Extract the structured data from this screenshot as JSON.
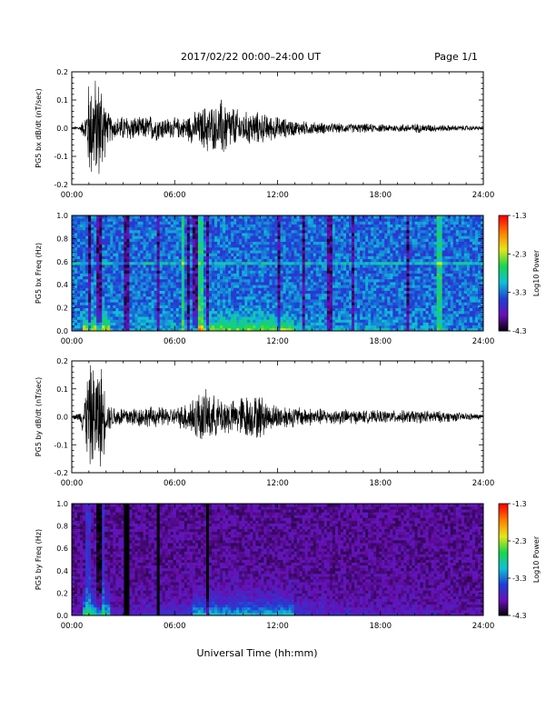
{
  "header": {
    "title": "2017/02/22  00:00–24:00 UT",
    "page": "Page 1/1"
  },
  "footer": {
    "xlabel": "Universal Time (hh:mm)"
  },
  "colors": {
    "trace": "#000000",
    "spectrogram_bg": "#2a0f6e",
    "colorbar": [
      "#000000",
      "#6a0fb5",
      "#1f3fd6",
      "#10c0d6",
      "#19d64b",
      "#e6e619",
      "#ff8000",
      "#ff0000"
    ]
  },
  "chart_data": [
    {
      "type": "line",
      "title": "",
      "xlabel": "",
      "ylabel": "PG5 bx dB/dt (nT/sec)",
      "xlim": [
        0,
        24
      ],
      "ylim": [
        -0.2,
        0.2
      ],
      "xticks": [
        "00:00",
        "06:00",
        "12:00",
        "18:00",
        "24:00"
      ],
      "yticks": [
        "-0.2",
        "-0.1",
        "0.0",
        "0.1",
        "0.2"
      ],
      "series": [
        {
          "x": [
            0,
            0.5,
            0.8,
            1.0,
            1.2,
            1.5,
            1.8,
            2.0,
            2.5,
            3.0,
            3.5,
            4.0,
            4.5,
            5.0,
            5.5,
            6.0,
            6.5,
            7.0,
            7.5,
            7.9,
            8.5,
            8.8,
            9.0,
            9.5,
            10.0,
            10.5,
            11.0,
            11.5,
            12.0,
            13.0,
            14.0,
            15.0,
            16.0,
            17.0,
            18.0,
            19.0,
            20.0,
            21.0,
            22.0,
            23.0,
            24.0
          ],
          "envelope": [
            0.005,
            0.01,
            0.05,
            0.2,
            0.2,
            0.2,
            0.2,
            0.07,
            0.04,
            0.05,
            0.05,
            0.04,
            0.05,
            0.05,
            0.04,
            0.04,
            0.04,
            0.06,
            0.07,
            0.1,
            0.08,
            0.13,
            0.1,
            0.08,
            0.06,
            0.07,
            0.06,
            0.05,
            0.045,
            0.03,
            0.025,
            0.02,
            0.018,
            0.018,
            0.015,
            0.015,
            0.018,
            0.015,
            0.012,
            0.01,
            0.008
          ]
        }
      ]
    },
    {
      "type": "heatmap",
      "title": "",
      "xlabel": "",
      "ylabel": "PG5 bx Freq (Hz)",
      "xlim": [
        0,
        24
      ],
      "ylim": [
        0,
        1.0
      ],
      "xticks": [
        "00:00",
        "06:00",
        "12:00",
        "18:00",
        "24:00"
      ],
      "yticks": [
        "0.0",
        "0.2",
        "0.4",
        "0.6",
        "0.8",
        "1.0"
      ],
      "colorbar": {
        "label": "Log10 Power",
        "ticks": [
          "-1.3",
          "-2.3",
          "-3.3",
          "-4.3"
        ],
        "range": [
          -4.3,
          -1.3
        ]
      },
      "features": {
        "dark_bands_hours": [
          1.0,
          1.6,
          3.2,
          5.0,
          6.7,
          7.2,
          7.9,
          12.1,
          13.5,
          15.0,
          16.4,
          19.6
        ],
        "bright_bands_hours": [
          6.6,
          7.5,
          21.4
        ],
        "line_freq_hz": 0.58
      }
    },
    {
      "type": "line",
      "title": "",
      "xlabel": "",
      "ylabel": "PG5 by dB/dt (nT/sec)",
      "xlim": [
        0,
        24
      ],
      "ylim": [
        -0.2,
        0.2
      ],
      "xticks": [
        "00:00",
        "06:00",
        "12:00",
        "18:00",
        "24:00"
      ],
      "yticks": [
        "-0.2",
        "-0.1",
        "0.0",
        "0.1",
        "0.2"
      ],
      "series": [
        {
          "x": [
            0,
            0.5,
            0.8,
            1.0,
            1.2,
            1.5,
            1.8,
            2.0,
            2.5,
            3.0,
            3.5,
            4.0,
            4.5,
            5.0,
            5.5,
            6.0,
            6.5,
            7.0,
            7.5,
            8.0,
            8.5,
            9.0,
            9.5,
            10.0,
            10.5,
            11.0,
            11.5,
            12.0,
            13.0,
            14.0,
            15.0,
            16.0,
            17.0,
            18.0,
            19.0,
            20.0,
            21.0,
            22.0,
            23.0,
            24.0
          ],
          "envelope": [
            0.005,
            0.02,
            0.12,
            0.2,
            0.2,
            0.2,
            0.2,
            0.06,
            0.04,
            0.04,
            0.04,
            0.04,
            0.04,
            0.04,
            0.035,
            0.035,
            0.05,
            0.08,
            0.1,
            0.1,
            0.07,
            0.08,
            0.06,
            0.09,
            0.08,
            0.09,
            0.05,
            0.05,
            0.04,
            0.035,
            0.03,
            0.03,
            0.025,
            0.025,
            0.025,
            0.025,
            0.025,
            0.02,
            0.015,
            0.01
          ]
        }
      ]
    },
    {
      "type": "heatmap",
      "title": "",
      "xlabel": "",
      "ylabel": "PG5 by Freq (Hz)",
      "xlim": [
        0,
        24
      ],
      "ylim": [
        0,
        1.0
      ],
      "xticks": [
        "00:00",
        "06:00",
        "12:00",
        "18:00",
        "24:00"
      ],
      "yticks": [
        "0.0",
        "0.2",
        "0.4",
        "0.6",
        "0.8",
        "1.0"
      ],
      "colorbar": {
        "label": "Log10 Power",
        "ticks": [
          "-1.3",
          "-2.3",
          "-3.3",
          "-4.3"
        ],
        "range": [
          -4.3,
          -1.3
        ]
      },
      "features": {
        "dark_bands_hours": [
          1.6,
          3.2,
          5.0,
          7.9
        ],
        "bright_bands_hours": [
          1.0,
          1.7
        ],
        "line_freq_hz": null
      }
    }
  ]
}
